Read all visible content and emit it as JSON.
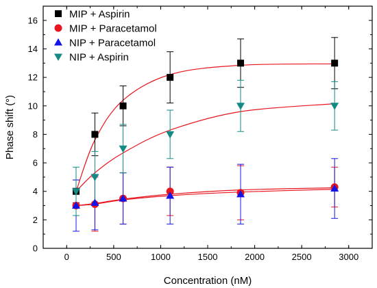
{
  "chart_data": {
    "type": "scatter",
    "xlabel": "Concentration (nM)",
    "ylabel": "Phase shift (°)",
    "xlim": [
      -250,
      3250
    ],
    "ylim": [
      0,
      17
    ],
    "xticks": [
      0,
      500,
      1000,
      1500,
      2000,
      2500,
      3000
    ],
    "yticks": [
      0,
      2,
      4,
      6,
      8,
      10,
      12,
      14,
      16
    ],
    "xtick_labels": [
      "0",
      "500",
      "1000",
      "1500",
      "2000",
      "2500",
      "3000"
    ],
    "ytick_labels": [
      "0",
      "2",
      "4",
      "6",
      "8",
      "10",
      "12",
      "14",
      "16"
    ],
    "legend_position": "top-left",
    "grid": false,
    "fit_color": "#e8141e",
    "series": [
      {
        "name": "MIP + Aspirin",
        "marker": "square",
        "color": "#000000",
        "x": [
          100,
          300,
          600,
          1100,
          1850,
          2850
        ],
        "y": [
          4,
          8,
          10,
          12,
          13,
          13
        ],
        "err": [
          0.8,
          1.5,
          1.4,
          1.8,
          1.7,
          1.8
        ],
        "fit_points": [
          [
            100,
            4.0
          ],
          [
            300,
            7.6
          ],
          [
            600,
            10.4
          ],
          [
            1100,
            12.2
          ],
          [
            1850,
            12.85
          ],
          [
            2850,
            12.95
          ]
        ]
      },
      {
        "name": "MIP + Paracetamol",
        "marker": "circle",
        "color": "#e8141e",
        "x": [
          100,
          300,
          600,
          1100,
          1850,
          2850
        ],
        "y": [
          3,
          3.1,
          3.5,
          4,
          3.9,
          4.3
        ],
        "err": [
          1.8,
          1.9,
          1.8,
          1.7,
          1.9,
          1.4
        ],
        "fit_points": [
          [
            100,
            3.0
          ],
          [
            300,
            3.15
          ],
          [
            600,
            3.45
          ],
          [
            1100,
            3.8
          ],
          [
            1850,
            4.1
          ],
          [
            2850,
            4.25
          ]
        ]
      },
      {
        "name": "NIP + Paracetamol",
        "marker": "triangle-up",
        "color": "#1414e6",
        "x": [
          100,
          300,
          600,
          1100,
          1850,
          2850
        ],
        "y": [
          3,
          3.2,
          3.5,
          3.7,
          3.8,
          4.2
        ],
        "err": [
          1.8,
          1.9,
          1.8,
          2.0,
          2.1,
          2.1
        ],
        "fit_points": [
          [
            100,
            3.0
          ],
          [
            300,
            3.1
          ],
          [
            600,
            3.4
          ],
          [
            1100,
            3.7
          ],
          [
            1850,
            3.95
          ],
          [
            2850,
            4.15
          ]
        ]
      },
      {
        "name": "NIP + Aspirin",
        "marker": "triangle-down",
        "color": "#138a84",
        "x": [
          100,
          300,
          600,
          1100,
          1850,
          2850
        ],
        "y": [
          4,
          5,
          7,
          8,
          10,
          10
        ],
        "err": [
          1.7,
          1.8,
          1.7,
          1.7,
          1.8,
          1.7
        ],
        "fit_points": [
          [
            100,
            4.0
          ],
          [
            300,
            5.3
          ],
          [
            600,
            6.7
          ],
          [
            1100,
            8.3
          ],
          [
            1850,
            9.6
          ],
          [
            2850,
            10.15
          ]
        ]
      }
    ]
  }
}
